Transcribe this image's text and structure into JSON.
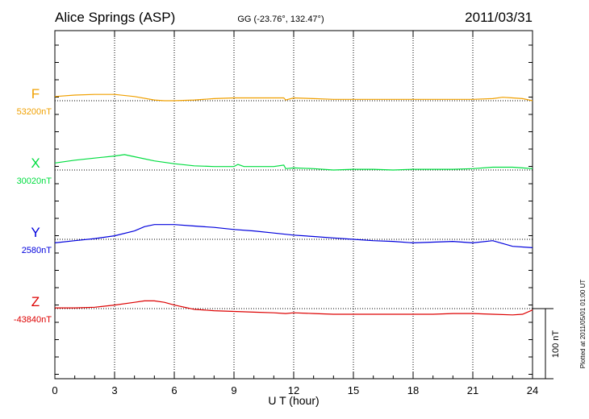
{
  "chart_data": {
    "type": "line",
    "title": "Alice Springs (ASP)",
    "subtitle": "GG (-23.76°, 132.47°)",
    "date": "2011/03/31",
    "xlabel": "U T (hour)",
    "xlim": [
      0,
      24
    ],
    "xticks": [
      "0",
      "3",
      "6",
      "9",
      "12",
      "15",
      "18",
      "21",
      "24"
    ],
    "grid": true,
    "scale_label": "100 nT",
    "scale_nT": 100,
    "footnote": "Plotted at 2011/05/01 01:00 UT",
    "series": [
      {
        "name": "F",
        "baseline_label": "53200nT",
        "baseline_nT": 53200,
        "color": "#f0a000",
        "x": [
          0,
          1,
          2,
          3,
          4,
          5,
          5.5,
          6,
          7,
          8,
          9,
          9.5,
          10,
          11,
          11.5,
          11.6,
          12,
          13,
          14,
          15,
          16,
          17,
          18,
          19,
          20,
          21,
          22,
          22.5,
          23,
          23.5,
          24
        ],
        "offset": [
          6,
          8,
          9,
          9,
          6,
          1,
          0,
          0,
          1,
          3,
          4,
          4,
          4,
          4,
          4,
          1,
          4,
          3,
          2,
          2,
          2,
          2,
          2,
          2,
          2,
          2,
          3,
          5,
          4,
          3,
          0
        ]
      },
      {
        "name": "X",
        "baseline_label": "30020nT",
        "baseline_nT": 30020,
        "color": "#00dd40",
        "x": [
          0,
          1,
          2,
          3,
          3.5,
          4,
          5,
          6,
          7,
          8,
          9,
          9.2,
          9.5,
          10,
          11,
          11.5,
          11.6,
          12,
          13,
          14,
          15,
          16,
          17,
          18,
          19,
          20,
          21,
          22,
          23,
          23.5,
          24
        ],
        "offset": [
          10,
          14,
          17,
          20,
          22,
          19,
          13,
          9,
          6,
          5,
          5,
          8,
          5,
          5,
          5,
          7,
          2,
          3,
          2,
          0,
          1,
          1,
          0,
          1,
          1,
          1,
          2,
          4,
          4,
          3,
          2
        ]
      },
      {
        "name": "Y",
        "baseline_label": "2580nT",
        "baseline_nT": 2580,
        "color": "#0000dd",
        "x": [
          0,
          1,
          2,
          3,
          4,
          4.5,
          5,
          6,
          7,
          8,
          9,
          10,
          11,
          12,
          13,
          14,
          15,
          16,
          17,
          18,
          19,
          20,
          21,
          22,
          22.5,
          23,
          24
        ],
        "offset": [
          -5,
          -2,
          1,
          5,
          12,
          18,
          21,
          21,
          19,
          17,
          14,
          12,
          9,
          6,
          4,
          2,
          0,
          -2,
          -3,
          -5,
          -4,
          -3,
          -5,
          -2,
          -6,
          -10,
          -12
        ]
      },
      {
        "name": "Z",
        "baseline_label": "-43840nT",
        "baseline_nT": -43840,
        "color": "#dd0000",
        "x": [
          0,
          1,
          2,
          3,
          4,
          4.5,
          5,
          5.5,
          6,
          7,
          8,
          9,
          10,
          11,
          11.6,
          12,
          13,
          14,
          15,
          16,
          17,
          18,
          19,
          20,
          21,
          22,
          23,
          23.5,
          24
        ],
        "offset": [
          1,
          1,
          2,
          5,
          9,
          11,
          11,
          9,
          5,
          -1,
          -3,
          -4,
          -5,
          -6,
          -7,
          -6,
          -7,
          -8,
          -8,
          -8,
          -8,
          -8,
          -8,
          -7,
          -7,
          -8,
          -9,
          -8,
          -2
        ]
      }
    ]
  }
}
